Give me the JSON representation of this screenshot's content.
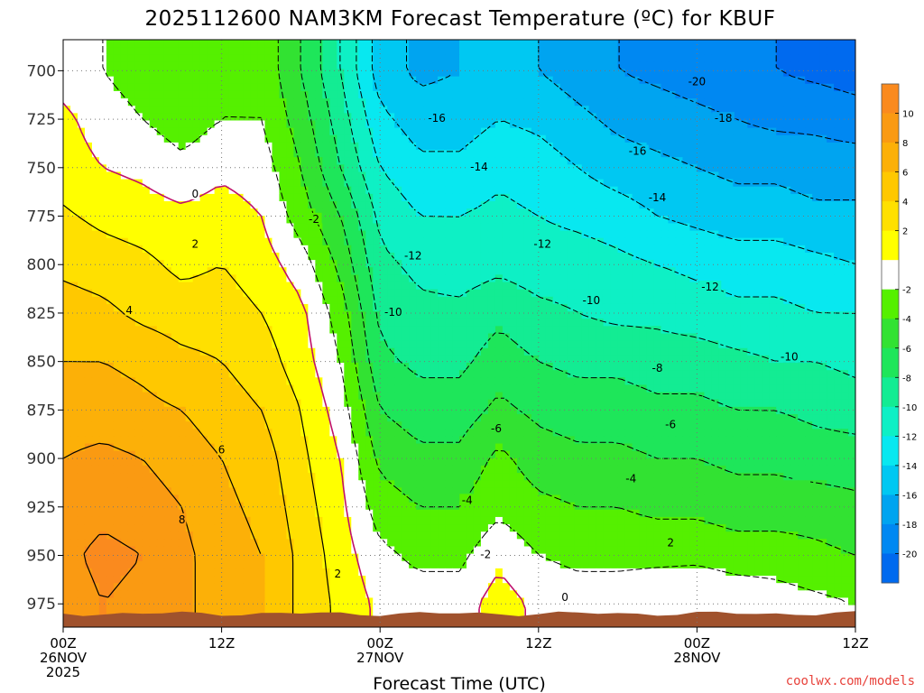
{
  "title": "2025112600 NAM3KM Forecast Temperature (ºC) for KBUF",
  "credit": "coolwx.com/models",
  "chart_data": {
    "type": "heatmap",
    "title": "2025112600 NAM3KM Forecast Temperature (ºC) for KBUF",
    "xlabel": "Forecast Time (UTC)",
    "ylabel": "",
    "x_unit": "hours after 00Z 26NOV 2025",
    "xlim": [
      0,
      60
    ],
    "ylim": [
      987,
      684
    ],
    "y_ticks": [
      700,
      725,
      750,
      775,
      800,
      825,
      850,
      875,
      900,
      925,
      950,
      975
    ],
    "x_ticks": [
      {
        "hour": 0,
        "lines": [
          "00Z",
          "26NOV",
          "2025"
        ]
      },
      {
        "hour": 12,
        "lines": [
          "12Z"
        ]
      },
      {
        "hour": 24,
        "lines": [
          "00Z",
          "27NOV"
        ]
      },
      {
        "hour": 36,
        "lines": [
          "12Z"
        ]
      },
      {
        "hour": 48,
        "lines": [
          "00Z",
          "28NOV"
        ]
      },
      {
        "hour": 60,
        "lines": [
          "12Z"
        ]
      }
    ],
    "grid": true,
    "colorbar": {
      "position": "right",
      "labels": [
        "10",
        "8",
        "6",
        "4",
        "2",
        "-2",
        "-4",
        "-6",
        "-8",
        "-10",
        "-12",
        "-14",
        "-16",
        "-18",
        "-20"
      ],
      "bins": [
        {
          "lo": 10,
          "hi": 12,
          "color": "#fa8a1e"
        },
        {
          "lo": 8,
          "hi": 10,
          "color": "#fa9a12"
        },
        {
          "lo": 6,
          "hi": 8,
          "color": "#fcb008"
        },
        {
          "lo": 4,
          "hi": 6,
          "color": "#ffc800"
        },
        {
          "lo": 2,
          "hi": 4,
          "color": "#ffe000"
        },
        {
          "lo": 0,
          "hi": 2,
          "color": "#ffff00"
        },
        {
          "lo": -2,
          "hi": 0,
          "color": "#ffffff"
        },
        {
          "lo": -4,
          "hi": -2,
          "color": "#55f000"
        },
        {
          "lo": -6,
          "hi": -4,
          "color": "#32e232"
        },
        {
          "lo": -8,
          "hi": -6,
          "color": "#1ee65a"
        },
        {
          "lo": -10,
          "hi": -8,
          "color": "#13ec93"
        },
        {
          "lo": -12,
          "hi": -10,
          "color": "#0ef0c5"
        },
        {
          "lo": -14,
          "hi": -12,
          "color": "#08e8f0"
        },
        {
          "lo": -16,
          "hi": -14,
          "color": "#00c8f2"
        },
        {
          "lo": -18,
          "hi": -16,
          "color": "#00a4f0"
        },
        {
          "lo": -20,
          "hi": -18,
          "color": "#0088f2"
        },
        {
          "lo": -22,
          "hi": -20,
          "color": "#006aef"
        }
      ]
    },
    "hours": [
      0,
      3,
      6,
      9,
      12,
      15,
      18,
      21,
      24,
      27,
      30,
      33,
      36,
      39,
      42,
      45,
      48,
      51,
      54,
      57,
      60
    ],
    "levels": [
      700,
      725,
      750,
      775,
      800,
      825,
      850,
      875,
      900,
      925,
      950,
      975
    ],
    "temperature": [
      [
        -1,
        -2,
        -3,
        -4,
        -2.5,
        -2.5,
        -6,
        -10,
        -15,
        -16.5,
        -16,
        -15,
        -16,
        -17,
        -18,
        -18.5,
        -19,
        -19.5,
        -20,
        -20.5,
        -21
      ],
      [
        0.5,
        -1,
        -2,
        -3,
        -2,
        -2,
        -5,
        -9,
        -13.5,
        -15,
        -15,
        -14,
        -14.5,
        -15.5,
        -16.5,
        -17,
        -17.5,
        -18,
        -18.5,
        -18.5,
        -19
      ],
      [
        1,
        0,
        -0.5,
        -1.5,
        -0.5,
        -1,
        -4,
        -8,
        -12,
        -13.5,
        -13.5,
        -12.5,
        -13,
        -14,
        -15,
        -15.5,
        -16,
        -16.5,
        -16.5,
        -17,
        -17
      ],
      [
        2.3,
        1.5,
        1,
        0.5,
        1,
        0,
        -3,
        -6,
        -10.5,
        -12,
        -12,
        -11.5,
        -12,
        -12.5,
        -13,
        -14,
        -14.5,
        -15,
        -15,
        -15.5,
        -15.5
      ],
      [
        3.5,
        3,
        2.5,
        1.5,
        2,
        1,
        -1,
        -4.5,
        -9.5,
        -10.5,
        -11,
        -10.5,
        -11,
        -11,
        -11.5,
        -12,
        -12.5,
        -13,
        -13,
        -13.5,
        -14
      ],
      [
        5,
        4.5,
        3.5,
        3,
        3,
        2,
        0.5,
        -3,
        -8.5,
        -9.5,
        -9.5,
        -8.5,
        -9.5,
        -10,
        -10.5,
        -10.5,
        -11,
        -11.5,
        -11.5,
        -12,
        -12
      ],
      [
        6,
        6,
        5.5,
        4.5,
        4,
        3,
        1,
        -2,
        -7.5,
        -8.5,
        -8.5,
        -7,
        -8,
        -8.5,
        -8.5,
        -9,
        -9,
        -9.5,
        -10,
        -10,
        -10.5
      ],
      [
        7,
        7,
        6.5,
        6,
        5,
        4,
        2,
        -1,
        -6,
        -7,
        -7,
        -5.5,
        -6.5,
        -7,
        -7,
        -7.5,
        -7.5,
        -8,
        -8,
        -8.5,
        -9
      ],
      [
        8,
        8.5,
        8,
        7,
        6,
        5,
        2.5,
        0,
        -4.5,
        -5.5,
        -5.5,
        -3.5,
        -5,
        -5.5,
        -5.5,
        -6,
        -6,
        -6.5,
        -6.5,
        -7,
        -7
      ],
      [
        9,
        9.5,
        9,
        8,
        6.5,
        5.5,
        3,
        0.5,
        -3,
        -4,
        -4,
        -2.5,
        -3.5,
        -4,
        -4,
        -4.5,
        -4.5,
        -5,
        -5,
        -5,
        -5.5
      ],
      [
        9.5,
        10.5,
        10,
        8.5,
        7,
        6,
        3.5,
        1,
        -1.5,
        -2.5,
        -2.5,
        -0.5,
        -2,
        -2.5,
        -2.5,
        -2.5,
        -2.5,
        -3,
        -3,
        -3.5,
        -4
      ],
      [
        9,
        10,
        9.5,
        8.5,
        7,
        6,
        3.5,
        1.5,
        -0.5,
        -1,
        -1,
        1,
        -0.5,
        -1,
        -1,
        -0.5,
        0,
        -0.5,
        -1,
        -1.5,
        -2
      ]
    ],
    "contour_labels": [
      {
        "text": "-20",
        "hour": 48.0,
        "level": 706
      },
      {
        "text": "-18",
        "hour": 50.0,
        "level": 725
      },
      {
        "text": "-16",
        "hour": 28.3,
        "level": 725
      },
      {
        "text": "-16",
        "hour": 43.5,
        "level": 742
      },
      {
        "text": "-14",
        "hour": 31.5,
        "level": 750
      },
      {
        "text": "-14",
        "hour": 45.0,
        "level": 766
      },
      {
        "text": "-12",
        "hour": 26.5,
        "level": 796
      },
      {
        "text": "-12",
        "hour": 36.3,
        "level": 790
      },
      {
        "text": "-12",
        "hour": 49.0,
        "level": 812
      },
      {
        "text": "-10",
        "hour": 25.0,
        "level": 825
      },
      {
        "text": "-10",
        "hour": 40.0,
        "level": 819
      },
      {
        "text": "-10",
        "hour": 55.0,
        "level": 848
      },
      {
        "text": "-8",
        "hour": 45.0,
        "level": 854
      },
      {
        "text": "-6",
        "hour": 32.8,
        "level": 885
      },
      {
        "text": "-6",
        "hour": 46.0,
        "level": 883
      },
      {
        "text": "-4",
        "hour": 30.6,
        "level": 922
      },
      {
        "text": "-4",
        "hour": 43.0,
        "level": 911
      },
      {
        "text": "-2",
        "hour": 19.0,
        "level": 777
      },
      {
        "text": "-2",
        "hour": 32.0,
        "level": 950
      },
      {
        "text": "2",
        "hour": 10.0,
        "level": 790
      },
      {
        "text": "2",
        "hour": 20.8,
        "level": 960
      },
      {
        "text": "2",
        "hour": 46.0,
        "level": 944
      },
      {
        "text": "4",
        "hour": 5.0,
        "level": 824
      },
      {
        "text": "6",
        "hour": 12.0,
        "level": 896
      },
      {
        "text": "8",
        "hour": 9.0,
        "level": 932
      },
      {
        "text": "0",
        "hour": 10.0,
        "level": 764
      },
      {
        "text": "0",
        "hour": 38.0,
        "level": 972
      }
    ],
    "ground_color": "#a0522d"
  }
}
